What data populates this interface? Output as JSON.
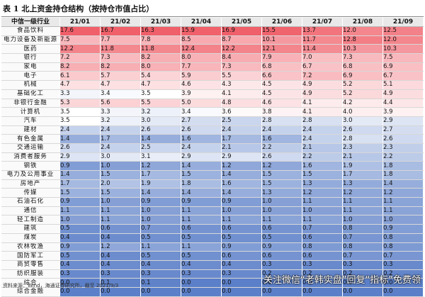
{
  "title": "表 1  北上资金持仓结构（按持仓市值占比）",
  "header": {
    "industry_label": "中信一级行业",
    "columns": [
      "21/01",
      "21/02",
      "21/03",
      "21/04",
      "21/05",
      "21/06",
      "21/07",
      "21/08",
      "21/09"
    ]
  },
  "rows": [
    {
      "industry": "食品饮料",
      "values": [
        17.6,
        16.7,
        16.3,
        15.9,
        16.9,
        15.5,
        13.7,
        12.0,
        12.5
      ]
    },
    {
      "industry": "电力设备及新能源",
      "values": [
        7.5,
        7.7,
        7.8,
        8.5,
        8.7,
        10.1,
        11.7,
        12.8,
        12.0
      ]
    },
    {
      "industry": "医药",
      "values": [
        12.2,
        11.8,
        11.8,
        12.4,
        12.2,
        12.1,
        11.4,
        10.3,
        10.3
      ]
    },
    {
      "industry": "银行",
      "values": [
        7.2,
        7.3,
        8.2,
        8.0,
        8.4,
        7.9,
        7.0,
        7.3,
        7.5
      ]
    },
    {
      "industry": "家电",
      "values": [
        8.2,
        8.2,
        8.0,
        7.7,
        7.3,
        6.8,
        6.7,
        6.8,
        6.9
      ]
    },
    {
      "industry": "电子",
      "values": [
        6.1,
        5.7,
        5.4,
        5.9,
        5.5,
        6.6,
        7.2,
        6.9,
        6.7
      ]
    },
    {
      "industry": "机械",
      "values": [
        4.7,
        4.7,
        4.7,
        4.6,
        4.3,
        4.5,
        4.9,
        5.2,
        5.1
      ]
    },
    {
      "industry": "基础化工",
      "values": [
        3.3,
        3.4,
        3.5,
        3.9,
        4.1,
        4.5,
        4.9,
        5.2,
        4.9
      ]
    },
    {
      "industry": "非银行金融",
      "values": [
        5.3,
        5.6,
        5.5,
        5.0,
        4.8,
        4.6,
        4.1,
        4.2,
        4.4
      ]
    },
    {
      "industry": "计算机",
      "values": [
        3.5,
        3.3,
        3.2,
        3.4,
        3.6,
        3.8,
        4.1,
        4.0,
        3.9
      ]
    },
    {
      "industry": "汽车",
      "values": [
        3.5,
        3.2,
        3.0,
        2.7,
        2.5,
        2.8,
        2.8,
        3.0,
        2.9
      ]
    },
    {
      "industry": "建材",
      "values": [
        2.4,
        2.4,
        2.6,
        2.6,
        2.4,
        2.4,
        2.4,
        2.6,
        2.7
      ]
    },
    {
      "industry": "有色金属",
      "values": [
        1.4,
        1.7,
        1.4,
        1.6,
        1.7,
        1.6,
        2.4,
        2.8,
        2.6
      ]
    },
    {
      "industry": "交通运输",
      "values": [
        2.6,
        2.4,
        2.5,
        2.4,
        2.1,
        2.2,
        2.1,
        2.3,
        2.3
      ]
    },
    {
      "industry": "消费者服务",
      "values": [
        2.9,
        3.0,
        3.1,
        2.9,
        2.9,
        2.6,
        2.2,
        2.1,
        2.2
      ]
    },
    {
      "industry": "钢铁",
      "values": [
        0.9,
        1.0,
        1.2,
        1.4,
        1.2,
        1.2,
        1.6,
        1.9,
        1.8
      ]
    },
    {
      "industry": "电力及公用事业",
      "values": [
        1.4,
        1.5,
        1.7,
        1.5,
        1.4,
        1.5,
        1.5,
        1.7,
        1.8
      ]
    },
    {
      "industry": "房地产",
      "values": [
        1.7,
        2.0,
        1.9,
        1.8,
        1.6,
        1.5,
        1.3,
        1.3,
        1.4
      ]
    },
    {
      "industry": "传媒",
      "values": [
        1.5,
        1.5,
        1.4,
        1.4,
        1.4,
        1.3,
        1.2,
        1.2,
        1.2
      ]
    },
    {
      "industry": "石油石化",
      "values": [
        0.9,
        1.0,
        0.9,
        0.9,
        0.9,
        1.0,
        1.1,
        1.1,
        1.1
      ]
    },
    {
      "industry": "通信",
      "values": [
        1.1,
        1.1,
        1.0,
        1.1,
        1.0,
        1.0,
        1.0,
        1.1,
        1.1
      ]
    },
    {
      "industry": "轻工制造",
      "values": [
        1.0,
        1.1,
        1.0,
        1.1,
        1.1,
        1.1,
        1.1,
        1.0,
        1.0
      ]
    },
    {
      "industry": "建筑",
      "values": [
        0.5,
        0.6,
        0.7,
        0.6,
        0.6,
        0.6,
        0.7,
        0.8,
        0.9
      ]
    },
    {
      "industry": "煤炭",
      "values": [
        0.4,
        0.4,
        0.5,
        0.5,
        0.5,
        0.5,
        0.6,
        0.7,
        0.8
      ]
    },
    {
      "industry": "农林牧渔",
      "values": [
        0.9,
        1.2,
        1.1,
        1.1,
        0.9,
        0.9,
        0.8,
        0.8,
        0.8
      ]
    },
    {
      "industry": "国防军工",
      "values": [
        0.5,
        0.4,
        0.5,
        0.5,
        0.6,
        0.6,
        0.6,
        0.7,
        0.7
      ]
    },
    {
      "industry": "商贸零售",
      "values": [
        0.4,
        0.4,
        0.4,
        0.4,
        0.4,
        0.3,
        0.3,
        0.3,
        0.3
      ]
    },
    {
      "industry": "纺织服装",
      "values": [
        0.3,
        0.3,
        0.3,
        0.3,
        0.3,
        0.2,
        0.2,
        0.2,
        0.2
      ]
    },
    {
      "industry": "综合",
      "values": [
        0.0,
        0.1,
        0.1,
        0.0,
        0.0,
        0.0,
        0.0,
        0.0,
        0.0
      ]
    },
    {
      "industry": "综合金融",
      "values": [
        0.0,
        0.0,
        0.0,
        0.0,
        0.0,
        0.0,
        0.0,
        0.0,
        0.0
      ]
    }
  ],
  "color_scale": {
    "low": "#5b7fc8",
    "mid": "#ffffff",
    "high": "#f0606a"
  },
  "footer": "资料来源：Wind，海通证券研究所，截至 2021/9/3",
  "watermark": "关注微信“老韩实盘”回复“指标”免费领"
}
